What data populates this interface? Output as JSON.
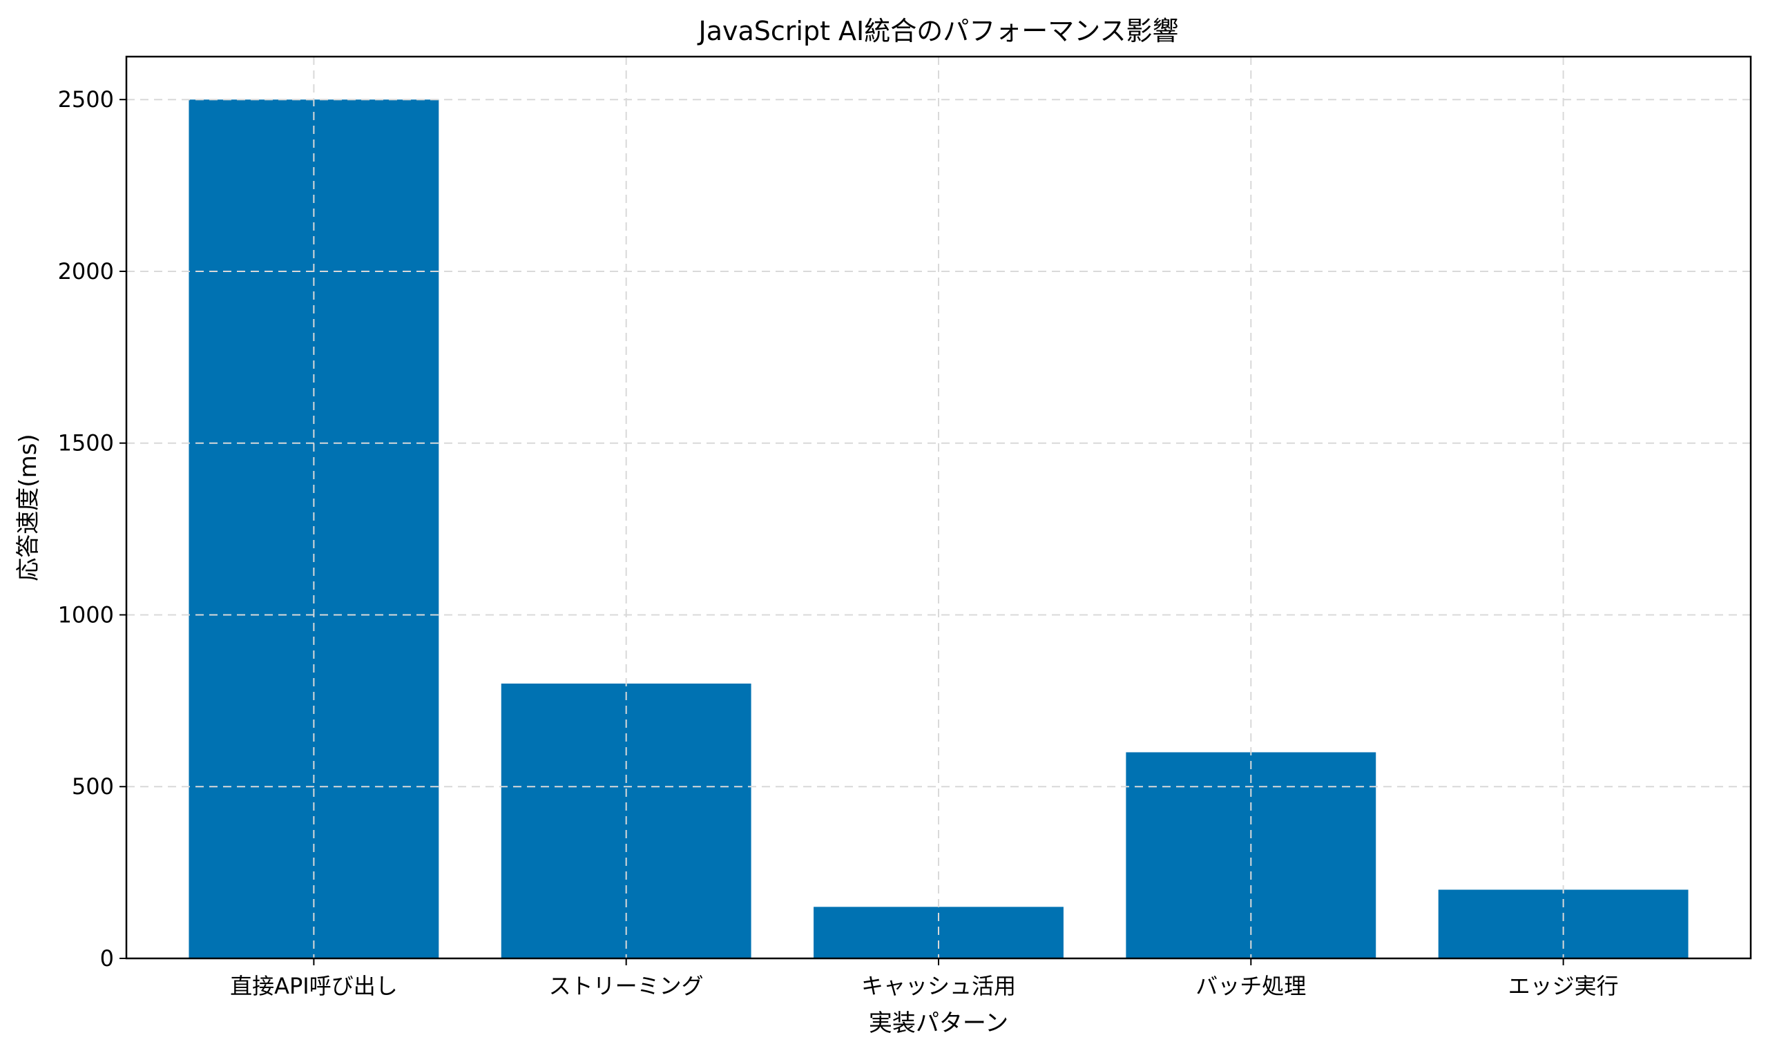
{
  "chart_data": {
    "type": "bar",
    "title": "JavaScript AI統合のパフォーマンス影響",
    "xlabel": "実装パターン",
    "ylabel": "応答速度(ms)",
    "categories": [
      "直接API呼び出し",
      "ストリーミング",
      "キャッシュ活用",
      "バッチ処理",
      "エッジ実行"
    ],
    "values": [
      2500,
      800,
      150,
      600,
      200
    ],
    "ylim": [
      0,
      2625
    ],
    "yticks": [
      0,
      500,
      1000,
      1500,
      2000,
      2500
    ],
    "grid": true,
    "bar_color": "#0072b2"
  }
}
